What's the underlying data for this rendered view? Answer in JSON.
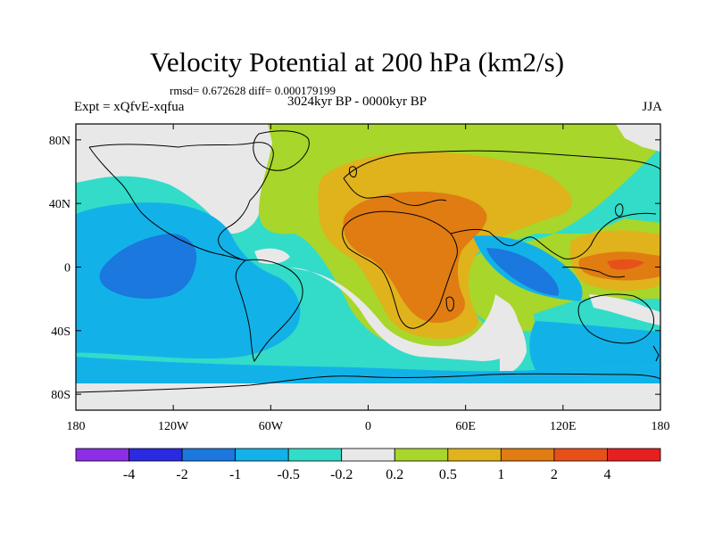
{
  "header": {
    "title": "Velocity Potential at 200 hPa (km2/s)",
    "stats": "rmsd= 0.672628 diff= 0.000179199",
    "expt": "Expt = xQfvE-xqfua",
    "subtitle": "3024kyr BP - 0000kyr BP",
    "season": "JJA"
  },
  "axes": {
    "lat_ticks": [
      {
        "value": 80,
        "label": "80N"
      },
      {
        "value": 40,
        "label": "40N"
      },
      {
        "value": 0,
        "label": "0"
      },
      {
        "value": -40,
        "label": "40S"
      },
      {
        "value": -80,
        "label": "80S"
      }
    ],
    "lon_ticks": [
      {
        "value": -180,
        "label": "180"
      },
      {
        "value": -120,
        "label": "120W"
      },
      {
        "value": -60,
        "label": "60W"
      },
      {
        "value": 0,
        "label": "0"
      },
      {
        "value": 60,
        "label": "60E"
      },
      {
        "value": 120,
        "label": "120E"
      },
      {
        "value": 180,
        "label": "180"
      }
    ],
    "lat_range": [
      -90,
      90
    ],
    "lon_range": [
      -180,
      180
    ]
  },
  "colorbar": {
    "colors": [
      "#8b2ee6",
      "#2a2ae0",
      "#1a78de",
      "#12b2e8",
      "#32dcc8",
      "#e8e8e8",
      "#a8d62a",
      "#e0b21c",
      "#e07c12",
      "#e8501a",
      "#e62020"
    ],
    "labels": [
      "-4",
      "-2",
      "-1",
      "-0.5",
      "-0.2",
      "0.2",
      "0.5",
      "1",
      "2",
      "4"
    ]
  },
  "map_colors": {
    "white": "#e8e8e8",
    "cyan": "#32dcc8",
    "lightblue": "#12b2e8",
    "blue": "#1a78de",
    "green": "#a8d62a",
    "gold": "#e0b21c",
    "orange": "#e07c12",
    "red": "#e8501a"
  }
}
